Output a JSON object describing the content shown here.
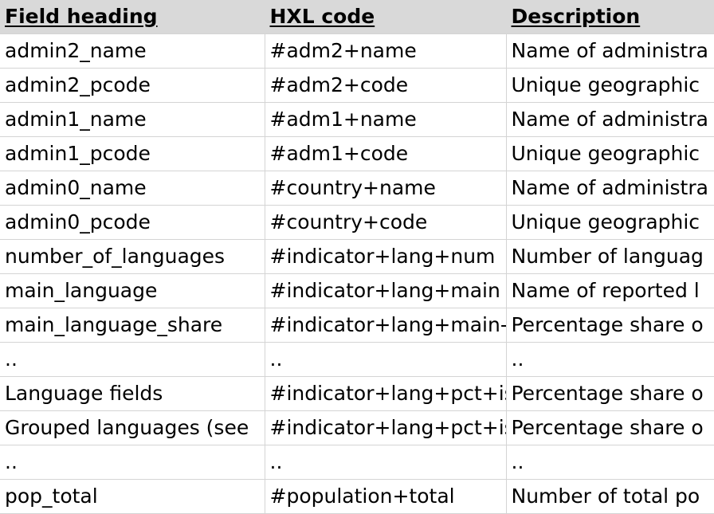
{
  "table": {
    "headers": [
      "Field heading",
      "HXL code",
      "Description"
    ],
    "rows": [
      [
        "admin2_name",
        "#adm2+name",
        "Name of administra"
      ],
      [
        "admin2_pcode",
        "#adm2+code",
        "Unique geographic"
      ],
      [
        "admin1_name",
        "#adm1+name",
        "Name of administra"
      ],
      [
        "admin1_pcode",
        "#adm1+code",
        "Unique geographic"
      ],
      [
        "admin0_name",
        "#country+name",
        "Name of administra"
      ],
      [
        "admin0_pcode",
        "#country+code",
        "Unique geographic"
      ],
      [
        "number_of_languages",
        "#indicator+lang+num",
        "Number of languag"
      ],
      [
        "main_language",
        "#indicator+lang+main",
        "Name of reported l"
      ],
      [
        "main_language_share",
        "#indicator+lang+main-",
        "Percentage share o"
      ],
      [
        "..",
        "..",
        ".."
      ],
      [
        "Language fields",
        "#indicator+lang+pct+is",
        "Percentage share o"
      ],
      [
        "Grouped languages (see",
        "#indicator+lang+pct+is",
        "Percentage share o"
      ],
      [
        "..",
        "..",
        ".."
      ],
      [
        "pop_total",
        "#population+total",
        "Number of total po"
      ]
    ]
  }
}
